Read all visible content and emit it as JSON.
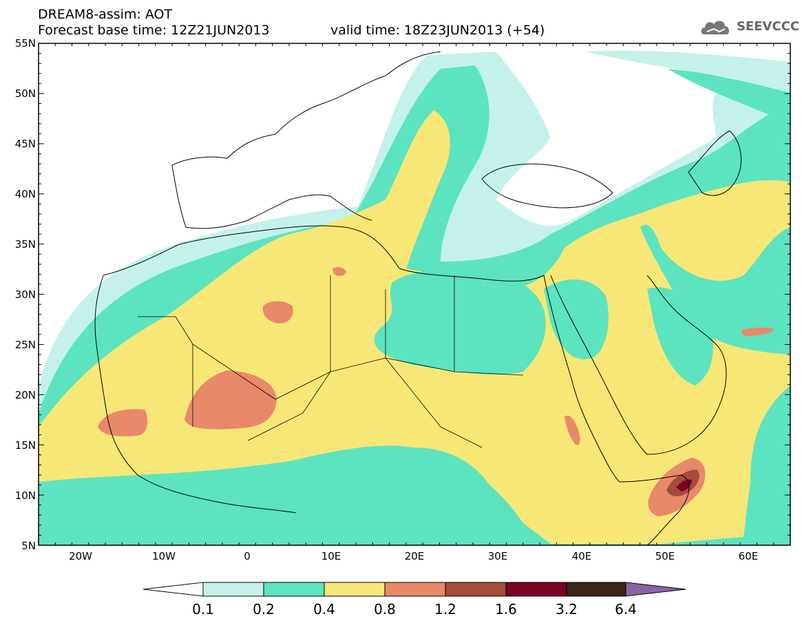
{
  "header": {
    "title_line1": "DREAM8-assim: AOT",
    "title_line2": "Forecast base time: 12Z21JUN2013",
    "valid_time": "valid time: 18Z23JUN2013 (+54)"
  },
  "logo": {
    "text": "SEEVCCC",
    "icon": "cloud-icon"
  },
  "map": {
    "lat_labels": [
      "55N",
      "50N",
      "45N",
      "40N",
      "35N",
      "30N",
      "25N",
      "20N",
      "15N",
      "10N",
      "5N"
    ],
    "lon_labels": [
      "20W",
      "10W",
      "0",
      "10E",
      "20E",
      "30E",
      "40E",
      "50E",
      "60E"
    ],
    "lon_range": [
      -25,
      65
    ],
    "lat_range": [
      5,
      55
    ]
  },
  "colorbar": {
    "labels": [
      "0.1",
      "0.2",
      "0.4",
      "0.8",
      "1.2",
      "1.6",
      "3.2",
      "6.4"
    ],
    "colors": [
      "#ffffff",
      "#c4f2ea",
      "#5ce3bf",
      "#f7e777",
      "#e8896a",
      "#a54b3b",
      "#7a0425",
      "#3e2415",
      "#8a62a6"
    ]
  }
}
